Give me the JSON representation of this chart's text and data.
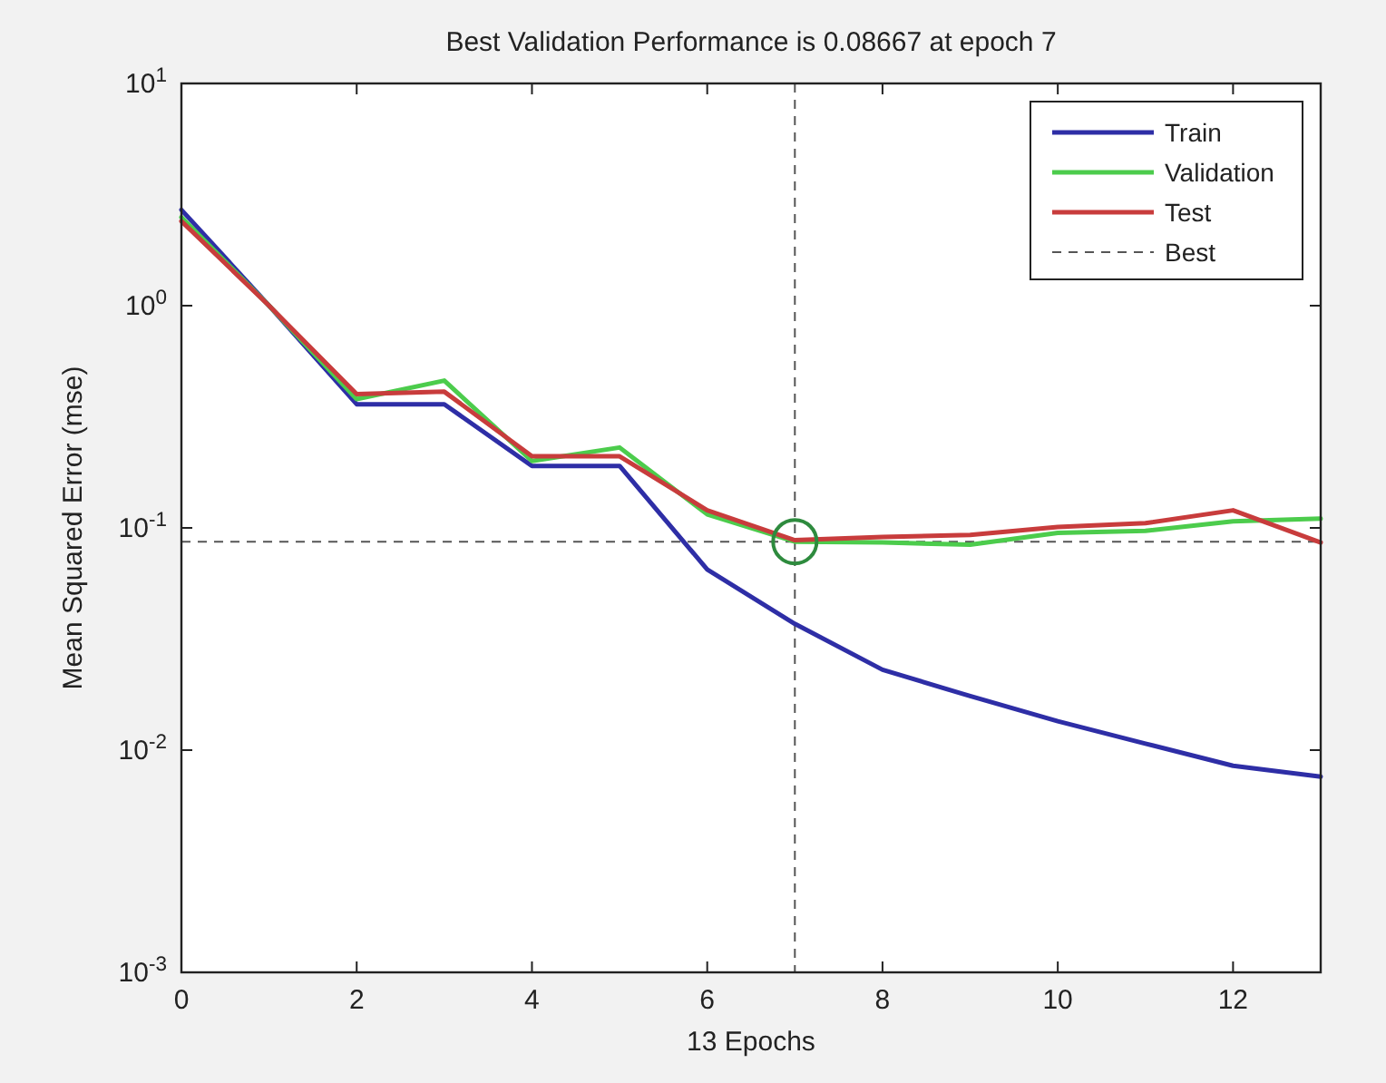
{
  "chart_data": {
    "type": "line",
    "title": "Best Validation Performance is 0.08667 at epoch 7",
    "xlabel": "13 Epochs",
    "ylabel": "Mean Squared Error  (mse)",
    "x": [
      0,
      1,
      2,
      3,
      4,
      5,
      6,
      7,
      8,
      9,
      10,
      11,
      12,
      13
    ],
    "series": [
      {
        "name": "Train",
        "color": "#2e2ea6",
        "values": [
          2.7,
          1.0,
          0.36,
          0.36,
          0.19,
          0.19,
          0.065,
          0.037,
          0.023,
          0.0175,
          0.0135,
          0.0107,
          0.0085,
          0.0076
        ]
      },
      {
        "name": "Validation",
        "color": "#4ccc4c",
        "values": [
          2.5,
          1.0,
          0.38,
          0.46,
          0.2,
          0.23,
          0.115,
          0.08667,
          0.086,
          0.084,
          0.095,
          0.097,
          0.107,
          0.11
        ]
      },
      {
        "name": "Test",
        "color": "#c83c3c",
        "values": [
          2.4,
          1.0,
          0.4,
          0.41,
          0.21,
          0.21,
          0.12,
          0.088,
          0.091,
          0.093,
          0.101,
          0.105,
          0.12,
          0.086
        ]
      },
      {
        "type": "scatter",
        "marker": "circle",
        "color": "#2e8b3e",
        "x": [
          7
        ],
        "values": [
          0.08667
        ]
      }
    ],
    "ref_lines": [
      {
        "axis": "x",
        "value": 7,
        "color": "#555555",
        "line_style": "dashed"
      },
      {
        "axis": "y",
        "value": 0.08667,
        "label": "Best",
        "color": "#555555",
        "line_style": "dashed"
      }
    ],
    "log": "y",
    "xlim": [
      0,
      13
    ],
    "xticks": [
      0,
      2,
      4,
      6,
      8,
      10,
      12
    ],
    "ylim": [
      0.001,
      10
    ],
    "yticks": [
      {
        "value": 0.001,
        "label": "10$^{-3}$"
      },
      {
        "value": 0.01,
        "label": "10$^{-2}$"
      },
      {
        "value": 0.1,
        "label": "10$^{-1}$"
      },
      {
        "value": 1,
        "label": "10$^{0}$"
      },
      {
        "value": 10,
        "label": "10$^{1}$"
      }
    ],
    "grid": false,
    "legend": "top right",
    "line_style": "solid",
    "marker": "none"
  }
}
